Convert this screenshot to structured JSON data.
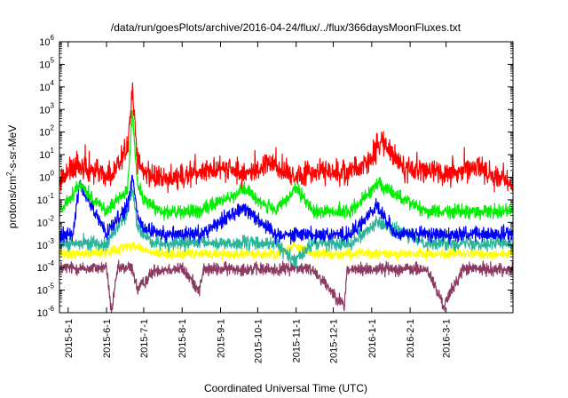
{
  "chart_data": {
    "type": "line",
    "title": "/data/run/goesPlots/archive/2016-04-24/flux/../flux/366daysMoonFluxes.txt",
    "xlabel": "Coordinated Universal Time (UTC)",
    "ylabel": {
      "text": "protons/cm",
      "sup": "2",
      "rest": "-s-sr-MeV"
    },
    "y_scale": "log",
    "ylim": [
      1e-06,
      1000000.0
    ],
    "xlim": [
      "2015-04-24",
      "2016-04-24"
    ],
    "grid": false,
    "legend": "none",
    "y_ticks": [
      {
        "base": "10",
        "exp": "-6",
        "value": 1e-06
      },
      {
        "base": "10",
        "exp": "-5",
        "value": 1e-05
      },
      {
        "base": "10",
        "exp": "-4",
        "value": 0.0001
      },
      {
        "base": "10",
        "exp": "-3",
        "value": 0.001
      },
      {
        "base": "10",
        "exp": "-2",
        "value": 0.01
      },
      {
        "base": "10",
        "exp": "-1",
        "value": 0.1
      },
      {
        "base": "10",
        "exp": "0",
        "value": 1.0
      },
      {
        "base": "10",
        "exp": "1",
        "value": 10.0
      },
      {
        "base": "10",
        "exp": "2",
        "value": 100.0
      },
      {
        "base": "10",
        "exp": "3",
        "value": 1000.0
      },
      {
        "base": "10",
        "exp": "4",
        "value": 10000.0
      },
      {
        "base": "10",
        "exp": "5",
        "value": 100000.0
      },
      {
        "base": "10",
        "exp": "6",
        "value": 1000000.0
      }
    ],
    "x_ticks": [
      {
        "label": "2015-5-1",
        "date": "2015-05-01"
      },
      {
        "label": "2015-6-1",
        "date": "2015-06-01"
      },
      {
        "label": "2015-7-1",
        "date": "2015-07-01"
      },
      {
        "label": "2015-8-1",
        "date": "2015-08-01"
      },
      {
        "label": "2015-9-1",
        "date": "2015-09-01"
      },
      {
        "label": "2015-10-1",
        "date": "2015-10-01"
      },
      {
        "label": "2015-11-1",
        "date": "2015-11-01"
      },
      {
        "label": "2015-12-1",
        "date": "2015-12-01"
      },
      {
        "label": "2016-1-1",
        "date": "2016-01-01"
      },
      {
        "label": "2016-2-1",
        "date": "2016-02-01"
      },
      {
        "label": "2016-3-1",
        "date": "2016-03-01"
      }
    ],
    "series": [
      {
        "color": "#8b3a62",
        "x": [
          "2015-04-24",
          "2015-05-15",
          "2015-06-01",
          "2015-06-05",
          "2015-06-10",
          "2015-06-20",
          "2015-06-22",
          "2015-06-26",
          "2015-07-10",
          "2015-08-01",
          "2015-08-15",
          "2015-08-18",
          "2015-09-15",
          "2015-10-15",
          "2015-10-31",
          "2015-11-15",
          "2015-12-10",
          "2015-12-12",
          "2016-01-15",
          "2016-02-15",
          "2016-02-28",
          "2016-03-15",
          "2016-04-24"
        ],
        "y": [
          0.0001,
          9e-05,
          0.0001,
          1e-06,
          9e-05,
          0.0001,
          9e-05,
          1e-05,
          8e-05,
          9e-05,
          1e-05,
          8e-05,
          9e-05,
          8e-05,
          0.0001,
          8e-05,
          2e-06,
          8e-05,
          9e-05,
          8e-05,
          2e-06,
          9e-05,
          8e-05
        ]
      },
      {
        "color": "#ffff00",
        "x": [
          "2015-04-24",
          "2015-05-15",
          "2015-06-01",
          "2015-06-22",
          "2015-07-10",
          "2015-08-01",
          "2015-09-15",
          "2015-10-15",
          "2015-10-31",
          "2015-11-15",
          "2015-12-15",
          "2016-01-15",
          "2016-02-15",
          "2016-03-15",
          "2016-04-24"
        ],
        "y": [
          0.0004,
          0.0004,
          0.0005,
          0.001,
          0.0004,
          0.0004,
          0.0004,
          0.0004,
          0.001,
          0.0004,
          0.0004,
          0.0004,
          0.0004,
          0.0004,
          0.0004
        ]
      },
      {
        "color": "#2ab59a",
        "x": [
          "2015-04-24",
          "2015-05-15",
          "2015-06-01",
          "2015-06-18",
          "2015-06-22",
          "2015-06-26",
          "2015-07-10",
          "2015-08-01",
          "2015-09-15",
          "2015-10-15",
          "2015-10-31",
          "2015-11-15",
          "2015-12-15",
          "2016-01-05",
          "2016-02-15",
          "2016-03-15",
          "2016-04-24"
        ],
        "y": [
          0.001,
          0.0012,
          0.0012,
          0.03,
          0.3,
          0.005,
          0.0012,
          0.0012,
          0.0012,
          0.0012,
          0.0002,
          0.0012,
          0.0012,
          0.01,
          0.0012,
          0.0012,
          0.0012
        ]
      },
      {
        "color": "#0000ff",
        "x": [
          "2015-04-24",
          "2015-05-05",
          "2015-05-10",
          "2015-06-01",
          "2015-06-18",
          "2015-06-22",
          "2015-06-26",
          "2015-07-01",
          "2015-07-15",
          "2015-08-15",
          "2015-09-20",
          "2015-10-15",
          "2015-11-01",
          "2015-11-15",
          "2015-12-15",
          "2016-01-05",
          "2016-01-20",
          "2016-02-15",
          "2016-03-15",
          "2016-04-24"
        ],
        "y": [
          0.003,
          0.003,
          0.5,
          0.003,
          0.05,
          1.0,
          0.02,
          0.005,
          0.003,
          0.003,
          0.05,
          0.003,
          0.003,
          0.003,
          0.003,
          0.05,
          0.003,
          0.003,
          0.003,
          0.003
        ]
      },
      {
        "color": "#00ee00",
        "x": [
          "2015-04-24",
          "2015-05-10",
          "2015-06-01",
          "2015-06-18",
          "2015-06-22",
          "2015-06-26",
          "2015-07-01",
          "2015-07-15",
          "2015-08-15",
          "2015-09-20",
          "2015-10-15",
          "2015-11-01",
          "2015-11-15",
          "2015-12-15",
          "2016-01-05",
          "2016-02-15",
          "2016-03-15",
          "2016-04-24"
        ],
        "y": [
          0.03,
          0.5,
          0.03,
          0.3,
          700,
          0.5,
          0.1,
          0.03,
          0.03,
          0.3,
          0.03,
          0.3,
          0.03,
          0.03,
          0.5,
          0.03,
          0.03,
          0.03
        ]
      },
      {
        "color": "#ff0000",
        "x": [
          "2015-04-24",
          "2015-05-05",
          "2015-05-20",
          "2015-06-05",
          "2015-06-18",
          "2015-06-22",
          "2015-06-26",
          "2015-07-05",
          "2015-07-20",
          "2015-08-10",
          "2015-09-01",
          "2015-09-20",
          "2015-10-10",
          "2015-10-30",
          "2015-11-20",
          "2015-12-10",
          "2015-12-30",
          "2016-01-10",
          "2016-01-25",
          "2016-02-15",
          "2016-03-05",
          "2016-03-25",
          "2016-04-10",
          "2016-04-24"
        ],
        "y": [
          0.8,
          3,
          2,
          1,
          20,
          10000,
          5,
          1,
          0.8,
          1.5,
          3,
          1.2,
          4,
          1,
          2,
          1.5,
          5,
          40,
          3,
          2,
          1.5,
          3,
          1,
          0.5
        ]
      }
    ]
  }
}
